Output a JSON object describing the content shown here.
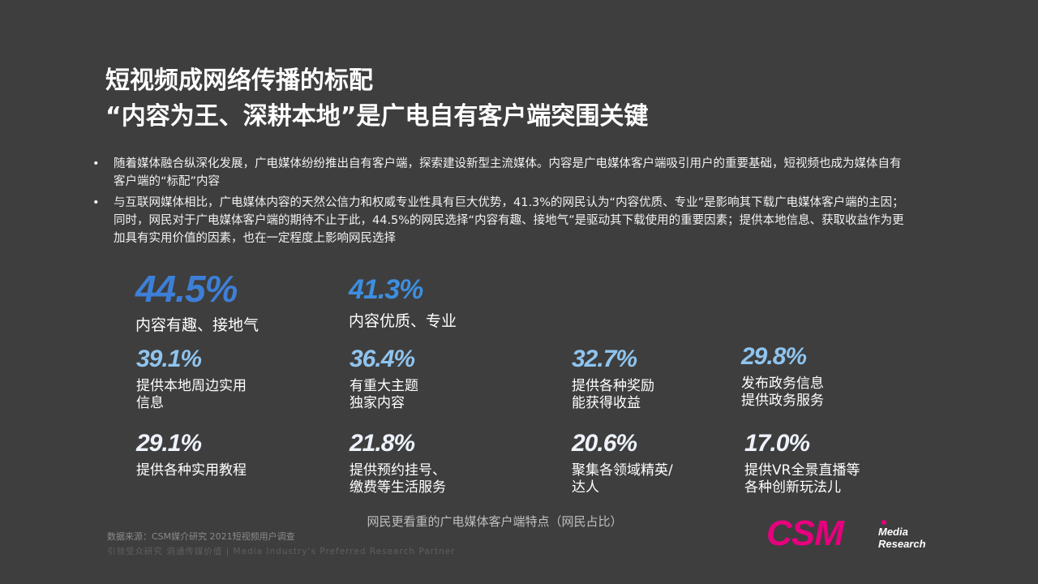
{
  "title": {
    "line1": "短视频成网络传播的标配",
    "line2": "“内容为王、深耕本地”是广电自有客户端突围关键"
  },
  "bullets": [
    "随着媒体融合纵深化发展，广电媒体纷纷推出自有客户端，探索建设新型主流媒体。内容是广电媒体客户端吸引用户的重要基础，短视频也成为媒体自有客户端的“标配”内容",
    "与互联网媒体相比，广电媒体内容的天然公信力和权威专业性具有巨大优势，41.3%的网民认为“内容优质、专业”是影响其下载广电媒体客户端的主因；同时，网民对于广电媒体客户端的期待不止于此，44.5%的网民选择“内容有趣、接地气”是驱动其下载使用的重要因素；提供本地信息、获取收益作为更加具有实用价值的因素，也在一定程度上影响网民选择"
  ],
  "bullet_symbol": "•",
  "stats": [
    {
      "value": "44.5%",
      "label1": "内容有趣、接地气",
      "label2": ""
    },
    {
      "value": "41.3%",
      "label1": "内容优质、专业",
      "label2": ""
    },
    {
      "value": "39.1%",
      "label1": "提供本地周边实用",
      "label2": "信息"
    },
    {
      "value": "36.4%",
      "label1": "有重大主题",
      "label2": "独家内容"
    },
    {
      "value": "32.7%",
      "label1": "提供各种奖励",
      "label2": "能获得收益"
    },
    {
      "value": "29.8%",
      "label1": "发布政务信息",
      "label2": "提供政务服务"
    },
    {
      "value": "29.1%",
      "label1": "提供各种实用教程",
      "label2": ""
    },
    {
      "value": "21.8%",
      "label1": "提供预约挂号、",
      "label2": "缴费等生活服务"
    },
    {
      "value": "20.6%",
      "label1": "聚集各领域精英/",
      "label2": "达人"
    },
    {
      "value": "17.0%",
      "label1": "提供VR全景直播等",
      "label2": "各种创新玩法儿"
    }
  ],
  "caption": "网民更看重的广电媒体客户端特点（网民占比）",
  "source": "数据来源：CSM媒介研究 2021短视频用户调查",
  "slogan": "引领受众研究  洞通传媒价值 | Media Industry's Preferred Research Partner",
  "logo": {
    "brand": "CSM",
    "line1": "Media",
    "line2": "Research"
  },
  "colors": {
    "background": "#3e3e3e",
    "accent_blue": "#3d7fd6",
    "light_blue": "#8fc4ef",
    "brand_pink": "#e6007e"
  }
}
